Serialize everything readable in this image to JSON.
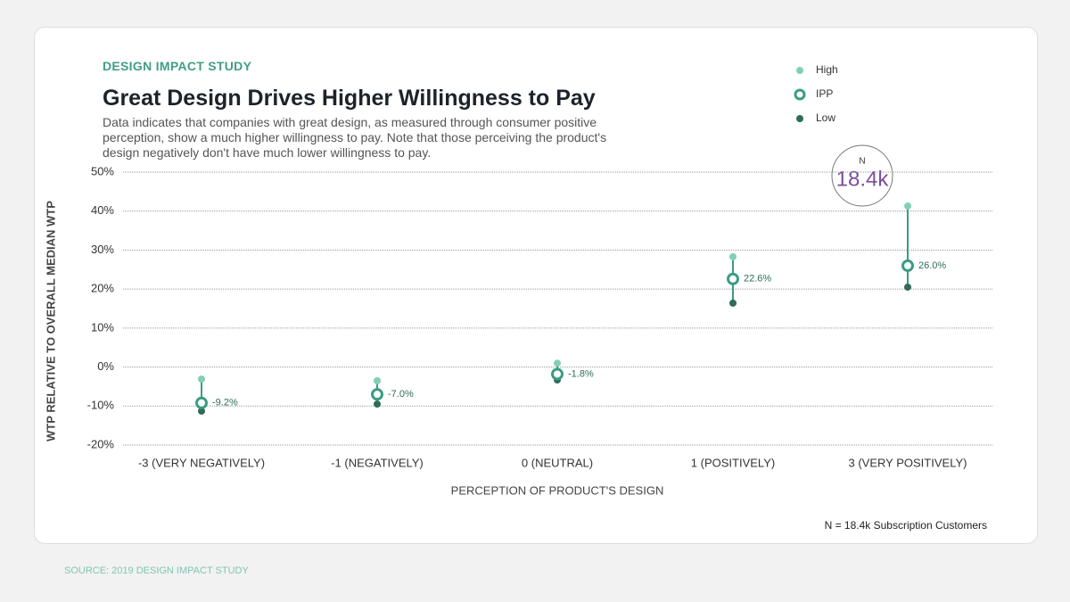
{
  "kicker": "DESIGN IMPACT STUDY",
  "source": "SOURCE: 2019 DESIGN IMPACT STUDY",
  "footnote": "N = 18.4k Subscription Customers",
  "badge": {
    "label": "N",
    "value": "18.4k"
  },
  "chart_data": {
    "type": "dot-range",
    "title": "Great Design Drives Higher Willingness to Pay",
    "subtitle": "Data indicates that companies with great design, as measured through consumer positive perception, show a much higher willingness to pay. Note that those perceiving the product's design negatively don't have much lower willingness to pay.",
    "x_label": "PERCEPTION OF PRODUCT'S DESIGN",
    "y_label": "WTP RELATIVE TO OVERALL MEDIAN WTP",
    "categories": [
      "-3 (VERY NEGATIVELY)",
      "-1 (NEGATIVELY)",
      "0 (NEUTRAL)",
      "1 (POSITIVELY)",
      "3 (VERY POSITIVELY)"
    ],
    "series": [
      {
        "name": "High",
        "color": "#82d0b2",
        "values": [
          -3.1,
          -3.5,
          1.0,
          28.3,
          41.3
        ]
      },
      {
        "name": "IPP",
        "color": "#3b9c82",
        "values": [
          -9.2,
          -7.0,
          -1.8,
          22.6,
          26.0
        ],
        "value_labels": [
          "-9.2%",
          "-7.0%",
          "-1.8%",
          "22.6%",
          "26.0%"
        ]
      },
      {
        "name": "Low",
        "color": "#2f6c57",
        "values": [
          -11.3,
          -9.5,
          -3.3,
          16.4,
          20.5
        ]
      }
    ],
    "range_color": "#3b9c82",
    "ylim": [
      -20,
      50
    ],
    "yticks": [
      {
        "value": -20,
        "label": "-20%"
      },
      {
        "value": -10,
        "label": "-10%"
      },
      {
        "value": 0,
        "label": "0%"
      },
      {
        "value": 10,
        "label": "10%"
      },
      {
        "value": 20,
        "label": "20%"
      },
      {
        "value": 30,
        "label": "30%"
      },
      {
        "value": 40,
        "label": "40%"
      },
      {
        "value": 50,
        "label": "50%"
      }
    ],
    "grid": true,
    "legend": "top-right"
  }
}
